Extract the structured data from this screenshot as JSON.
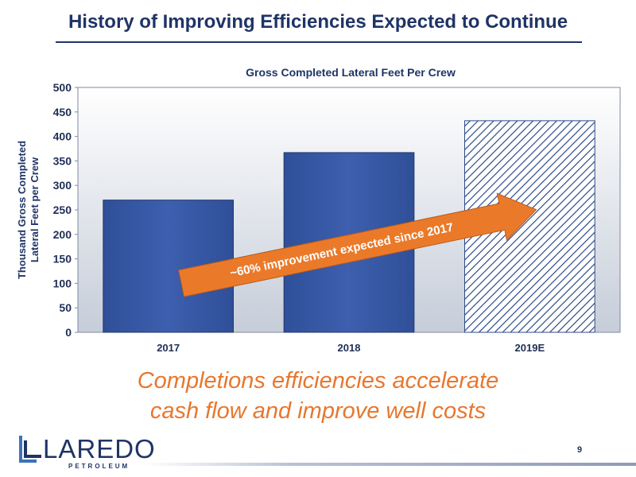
{
  "slide": {
    "title": "History of Improving Efficiencies Expected to Continue",
    "tagline_line1": "Completions efficiencies accelerate",
    "tagline_line2": "cash flow and improve well costs",
    "page_number": "9"
  },
  "logo": {
    "name": "LAREDO",
    "subtitle": "PETROLEUM"
  },
  "colors": {
    "bar": "#3a5ba8",
    "bar_dark": "#20386f",
    "hatch": "#2c4a88",
    "arrow": "#ea7a2a",
    "title": "#1f3466"
  },
  "chart_data": {
    "type": "bar",
    "title": "Gross Completed Lateral Feet Per Crew",
    "ylabel": "Thousand Gross Completed Lateral Feet per Crew",
    "xlabel": "",
    "categories": [
      "2017",
      "2018",
      "2019E"
    ],
    "values": [
      270,
      367,
      432
    ],
    "estimated": [
      false,
      false,
      true
    ],
    "ylim": [
      0,
      500
    ],
    "yticks": [
      0,
      50,
      100,
      150,
      200,
      250,
      300,
      350,
      400,
      450,
      500
    ],
    "grid": false,
    "annotation": "~60% improvement expected since 2017"
  }
}
